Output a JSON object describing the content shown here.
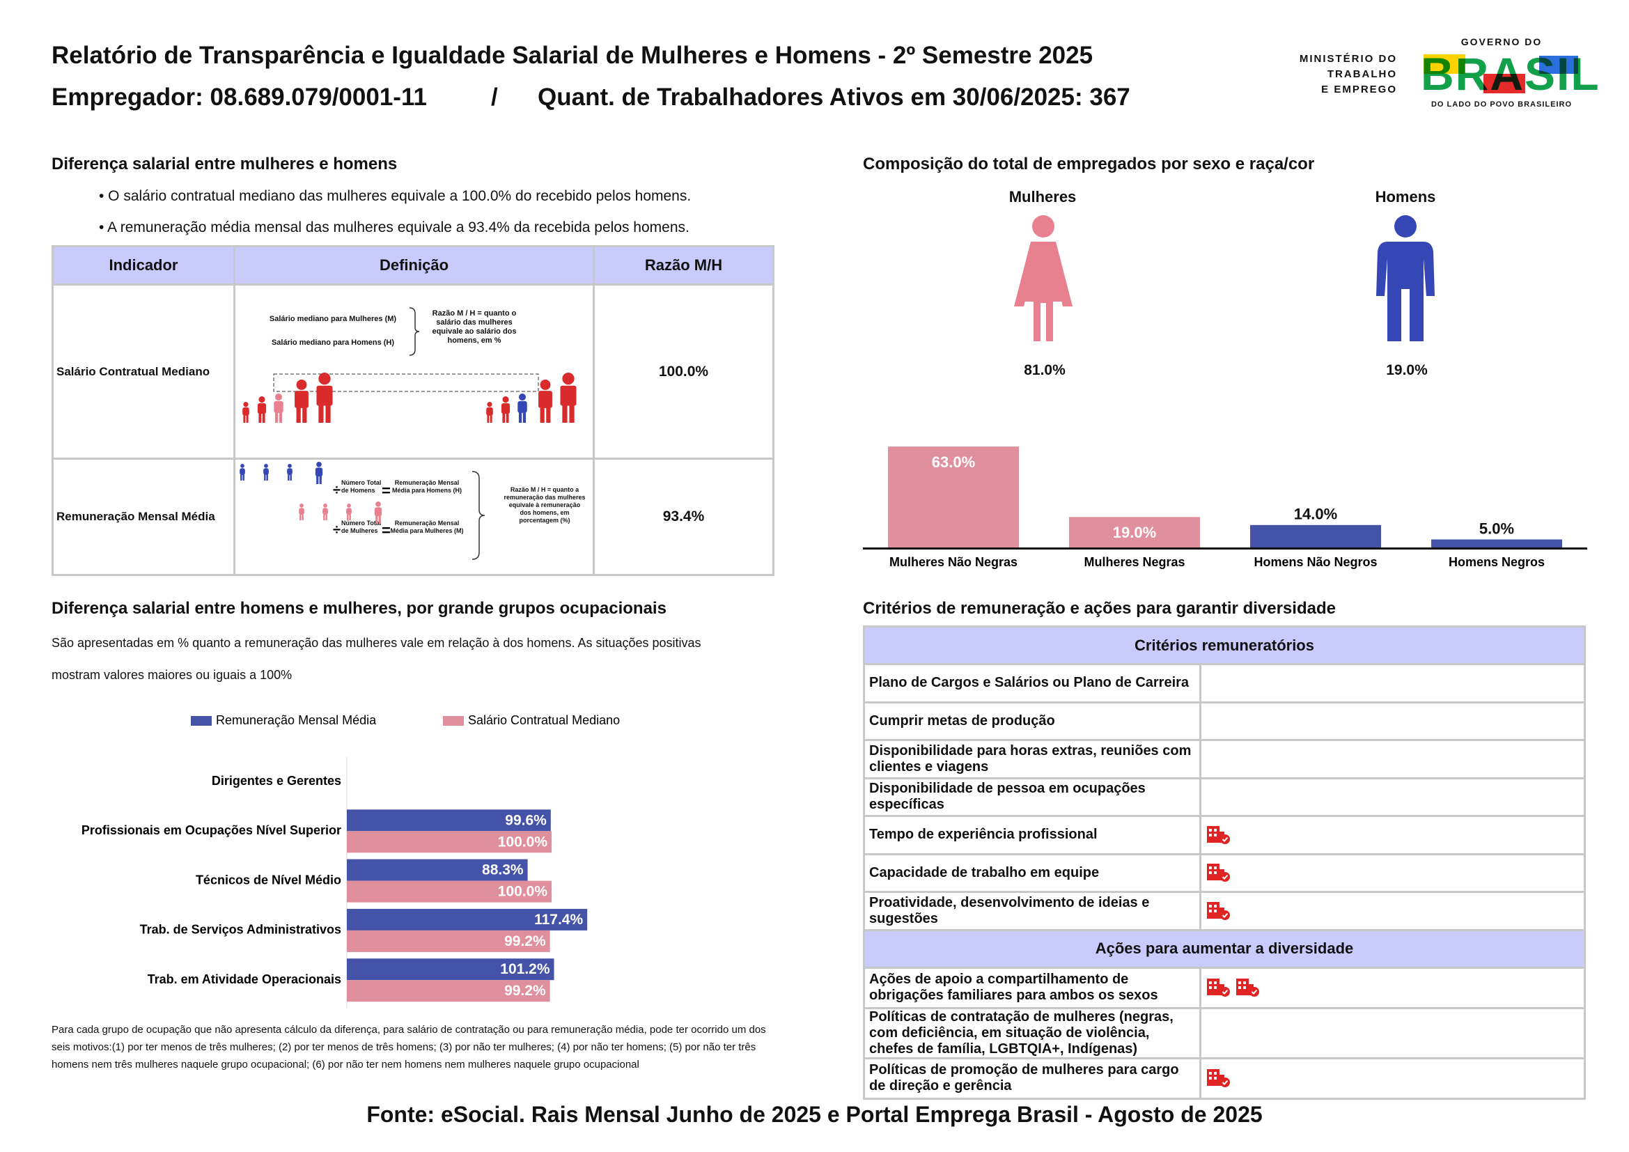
{
  "header": {
    "title": "Relatório de Transparência e Igualdade Salarial de Mulheres e Homens - 2º Semestre 2025",
    "employer": "Empregador: 08.689.079/0001-11",
    "separator": "/",
    "workers": "Quant. de Trabalhadores Ativos em 30/06/2025: 367"
  },
  "logo": {
    "ministry": [
      "MINISTÉRIO DO",
      "TRABALHO",
      "E EMPREGO"
    ],
    "top": "GOVERNO DO",
    "main": "BRASIL",
    "bottom": "DO LADO DO POVO BRASILEIRO"
  },
  "salary_gap": {
    "title": "Diferença salarial entre mulheres e homens",
    "bullets": [
      "• O salário contratual mediano das mulheres equivale a 100.0% do recebido pelos homens.",
      "• A remuneração média mensal das mulheres equivale a 93.4% da recebida pelos homens."
    ],
    "table": {
      "header": [
        "Indicador",
        "Definição",
        "Razão M/H"
      ],
      "rows": [
        [
          "Salário Contratual Mediano",
          "100.0%"
        ],
        [
          "Remuneração Mensal Média",
          "93.4%"
        ]
      ]
    },
    "definition_1": {
      "women": "Salário mediano para Mulheres (M)",
      "men": "Salário mediano para Homens (H)",
      "ratio": "Razão M / H = quanto o salário das mulheres equivale ao salário dos homens, em %"
    },
    "definition_2": {
      "men_count": "Número Total de Homens",
      "men_pay": "Remuneração Mensal Média para Homens (H)",
      "women_count": "Número Total de Mulheres",
      "women_pay": "Remuneração Mensal Média para Mulheres (M)",
      "ratio": "Razão M / H = quanto a remuneração das mulheres equivale à remuneração dos homens, em porcentagem (%)"
    }
  },
  "composition": {
    "title": "Composição do total de empregados por sexo e raça/cor",
    "women": {
      "label": "Mulheres",
      "share": "81.0%"
    },
    "men": {
      "label": "Homens",
      "share": "19.0%"
    },
    "chart_data": {
      "type": "bar",
      "categories": [
        "Mulheres Não Negras",
        "Mulheres Negras",
        "Homens Não Negros",
        "Homens Negros"
      ],
      "values": [
        63,
        19,
        14,
        5
      ],
      "value_labels": [
        "63.0%",
        "19.0%",
        "14.0%",
        "5.0%"
      ],
      "colors": [
        "#e0909c",
        "#e0909c",
        "#4453a8",
        "#4453a8"
      ]
    }
  },
  "occupational": {
    "title": "Diferença salarial entre homens e mulheres, por grande grupos ocupacionais",
    "note": "São apresentadas em % quanto a remuneração das mulheres vale em relação à dos homens. As situações positivas mostram valores maiores ou iguais a 100%",
    "chart_data": {
      "type": "bar",
      "orientation": "horizontal",
      "categories": [
        "Dirigentes e Gerentes",
        "Profissionais em Ocupações Nível Superior",
        "Técnicos de Nível Médio",
        "Trab. de Serviços Administrativos",
        "Trab. em Atividade Operacionais"
      ],
      "series": [
        {
          "name": "Remuneração Mensal Média",
          "color": "#4453a8",
          "values": [
            null,
            99.6,
            88.3,
            117.4,
            101.2
          ],
          "value_labels": [
            null,
            "99.6%",
            "88.3%",
            "117.4%",
            "101.2%"
          ]
        },
        {
          "name": "Salário Contratual Mediano",
          "color": "#e0909c",
          "values": [
            null,
            100,
            100,
            99.2,
            99.2
          ],
          "value_labels": [
            null,
            "100.0%",
            "100.0%",
            "99.2%",
            "99.2%"
          ]
        }
      ]
    },
    "footnote": "Para cada grupo de ocupação que não apresenta cálculo da diferença, para salário de contratação ou para remuneração média, pode ter ocorrido um dos seis motivos:(1) por ter menos de três mulheres; (2) por ter menos de três homens; (3) por não ter mulheres; (4) por não ter homens; (5) por não ter três homens nem três mulheres naquele grupo ocupacional; (6) por não ter nem homens nem mulheres naquele grupo ocupacional"
  },
  "criteria": {
    "title": "Critérios de remuneração e ações para garantir diversidade",
    "criteria_header": "Critérios remuneratórios",
    "criteria_rows": [
      {
        "label": "Plano de Cargos e Salários ou Plano de Carreira",
        "icons": 0
      },
      {
        "label": "Cumprir metas de produção",
        "icons": 0
      },
      {
        "label": "Disponibilidade para horas extras, reuniões com clientes e viagens",
        "icons": 0
      },
      {
        "label": "Disponibilidade de pessoa em ocupações específicas",
        "icons": 0
      },
      {
        "label": "Tempo de experiência profissional",
        "icons": 1
      },
      {
        "label": "Capacidade de trabalho em equipe",
        "icons": 1
      },
      {
        "label": "Proatividade, desenvolvimento de ideias e sugestões",
        "icons": 1
      }
    ],
    "actions_header": "Ações para aumentar a diversidade",
    "actions_rows": [
      {
        "label": "Ações de apoio a compartilhamento de obrigações familiares para ambos os sexos",
        "icons": 2
      },
      {
        "label": "Políticas de contratação de mulheres (negras, com deficiência, em situação de violência, chefes de família, LGBTQIA+, Indígenas)",
        "icons": 0
      },
      {
        "label": "Políticas de promoção de mulheres para cargo de direção e gerência",
        "icons": 1
      }
    ]
  },
  "source": "Fonte: eSocial. Rais Mensal Junho de 2025 e Portal Emprega Brasil - Agosto de 2025"
}
